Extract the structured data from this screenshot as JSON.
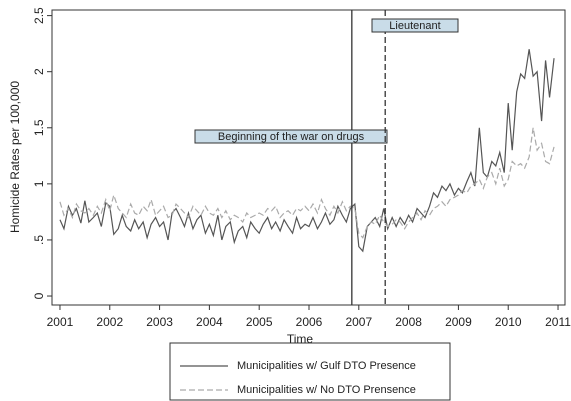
{
  "chart_data": {
    "type": "line",
    "y_label": "Homicide Rates per 100,000",
    "x_label": "Time",
    "x": [
      2001,
      2001.08,
      2001.17,
      2001.25,
      2001.33,
      2001.42,
      2001.5,
      2001.58,
      2001.67,
      2001.75,
      2001.83,
      2001.92,
      2002,
      2002.08,
      2002.17,
      2002.25,
      2002.33,
      2002.42,
      2002.5,
      2002.58,
      2002.67,
      2002.75,
      2002.83,
      2002.92,
      2003,
      2003.08,
      2003.17,
      2003.25,
      2003.33,
      2003.42,
      2003.5,
      2003.58,
      2003.67,
      2003.75,
      2003.83,
      2003.92,
      2004,
      2004.08,
      2004.17,
      2004.25,
      2004.33,
      2004.42,
      2004.5,
      2004.58,
      2004.67,
      2004.75,
      2004.83,
      2004.92,
      2005,
      2005.08,
      2005.17,
      2005.25,
      2005.33,
      2005.42,
      2005.5,
      2005.58,
      2005.67,
      2005.75,
      2005.83,
      2005.92,
      2006,
      2006.08,
      2006.17,
      2006.25,
      2006.33,
      2006.42,
      2006.5,
      2006.58,
      2006.67,
      2006.75,
      2006.83,
      2006.92,
      2007,
      2007.08,
      2007.17,
      2007.25,
      2007.33,
      2007.42,
      2007.5,
      2007.58,
      2007.67,
      2007.75,
      2007.83,
      2007.92,
      2008,
      2008.08,
      2008.17,
      2008.25,
      2008.33,
      2008.42,
      2008.5,
      2008.58,
      2008.67,
      2008.75,
      2008.83,
      2008.92,
      2009,
      2009.08,
      2009.17,
      2009.25,
      2009.33,
      2009.42,
      2009.5,
      2009.58,
      2009.67,
      2009.75,
      2009.83,
      2009.92,
      2010,
      2010.08,
      2010.17,
      2010.25,
      2010.33,
      2010.42,
      2010.5,
      2010.58,
      2010.67,
      2010.75,
      2010.83,
      2010.92
    ],
    "series": [
      {
        "name": "Municipalities w/ Gulf DTO Presence",
        "color": "#555555",
        "style": "solid",
        "values": [
          0.68,
          0.6,
          0.8,
          0.72,
          0.78,
          0.65,
          0.85,
          0.66,
          0.7,
          0.74,
          0.62,
          0.83,
          0.8,
          0.55,
          0.6,
          0.72,
          0.62,
          0.58,
          0.68,
          0.6,
          0.66,
          0.52,
          0.64,
          0.7,
          0.62,
          0.66,
          0.5,
          0.74,
          0.78,
          0.7,
          0.62,
          0.74,
          0.6,
          0.68,
          0.72,
          0.56,
          0.64,
          0.54,
          0.72,
          0.5,
          0.62,
          0.66,
          0.48,
          0.58,
          0.62,
          0.52,
          0.66,
          0.6,
          0.56,
          0.64,
          0.7,
          0.6,
          0.66,
          0.58,
          0.68,
          0.62,
          0.56,
          0.7,
          0.6,
          0.64,
          0.62,
          0.7,
          0.6,
          0.66,
          0.74,
          0.64,
          0.68,
          0.8,
          0.72,
          0.66,
          0.78,
          0.82,
          0.44,
          0.4,
          0.62,
          0.66,
          0.7,
          0.62,
          0.78,
          0.6,
          0.7,
          0.62,
          0.7,
          0.64,
          0.72,
          0.66,
          0.78,
          0.74,
          0.7,
          0.8,
          0.92,
          0.88,
          0.98,
          0.94,
          1.0,
          0.9,
          0.96,
          0.92,
          1.02,
          1.1,
          0.98,
          1.5,
          1.1,
          1.06,
          1.2,
          1.16,
          1.28,
          1.1,
          1.72,
          1.3,
          1.82,
          1.98,
          1.94,
          2.2,
          1.96,
          2.0,
          1.56,
          2.1,
          1.77,
          2.12
        ]
      },
      {
        "name": "Municipalities w/ No DTO Prensence",
        "color": "#aaaaaa",
        "style": "dashed",
        "values": [
          0.84,
          0.72,
          0.78,
          0.7,
          0.82,
          0.76,
          0.74,
          0.78,
          0.72,
          0.8,
          0.74,
          0.86,
          0.76,
          0.9,
          0.78,
          0.74,
          0.7,
          0.82,
          0.74,
          0.72,
          0.8,
          0.76,
          0.86,
          0.72,
          0.76,
          0.8,
          0.7,
          0.72,
          0.82,
          0.78,
          0.74,
          0.7,
          0.8,
          0.76,
          0.72,
          0.8,
          0.74,
          0.72,
          0.78,
          0.7,
          0.76,
          0.68,
          0.72,
          0.7,
          0.66,
          0.74,
          0.7,
          0.72,
          0.74,
          0.72,
          0.78,
          0.76,
          0.8,
          0.7,
          0.74,
          0.76,
          0.72,
          0.78,
          0.76,
          0.8,
          0.76,
          0.82,
          0.74,
          0.86,
          0.78,
          0.72,
          0.8,
          0.74,
          0.84,
          0.76,
          0.8,
          0.78,
          0.56,
          0.52,
          0.62,
          0.66,
          0.64,
          0.72,
          0.66,
          0.62,
          0.64,
          0.68,
          0.66,
          0.6,
          0.66,
          0.7,
          0.74,
          0.68,
          0.76,
          0.72,
          0.78,
          0.8,
          0.84,
          0.8,
          0.86,
          0.88,
          0.9,
          0.94,
          0.92,
          0.98,
          1.0,
          1.04,
          0.96,
          1.06,
          1.1,
          1.0,
          1.14,
          0.98,
          1.04,
          1.2,
          1.16,
          1.18,
          1.14,
          1.24,
          1.5,
          1.3,
          1.36,
          1.2,
          1.18,
          1.33
        ]
      }
    ],
    "vlines": [
      {
        "x": 2006.86,
        "style": "solid",
        "label": "Beginning of the war on drugs"
      },
      {
        "x": 2007.53,
        "style": "dashed",
        "label": "Lieutenant"
      }
    ],
    "xlim": [
      2000.84,
      2011.14
    ],
    "xticks": [
      2001,
      2002,
      2003,
      2004,
      2005,
      2006,
      2007,
      2008,
      2009,
      2010,
      2011
    ],
    "ylim": [
      -0.08,
      2.55
    ],
    "yticks": [
      0,
      {
        "value": 0.5,
        "label": ".5"
      },
      1,
      1.5,
      2,
      2.5
    ],
    "legend": "bottom"
  }
}
